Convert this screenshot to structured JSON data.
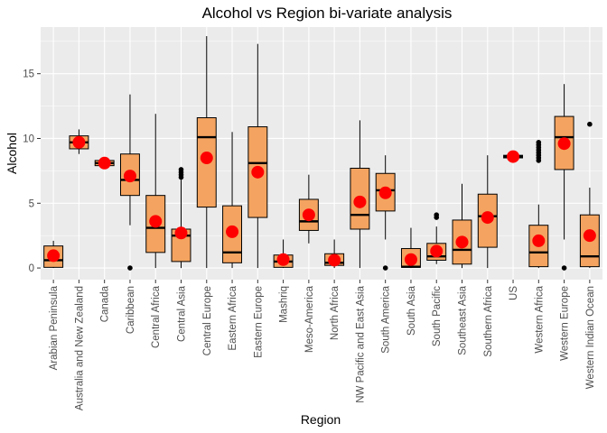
{
  "chart_data": {
    "type": "box",
    "title": "Alcohol vs Region bi-variate analysis",
    "xlabel": "Region",
    "ylabel": "Alcohol",
    "ylim": [
      -0.9,
      18.6
    ],
    "yticks": [
      0,
      5,
      10,
      15
    ],
    "grid": true,
    "background": "#ebebeb",
    "box_fill": "#f4a460",
    "mean_color": "#ff0000",
    "categories": [
      {
        "name": "Arabian Peninsula",
        "min": 0,
        "q1": 0.05,
        "median": 0.6,
        "q3": 1.7,
        "max": 2.1,
        "mean": 0.95,
        "outliers": []
      },
      {
        "name": "Australia and New Zealand",
        "min": 8.8,
        "q1": 9.2,
        "median": 9.7,
        "q3": 10.2,
        "max": 10.7,
        "mean": 9.7,
        "outliers": []
      },
      {
        "name": "Canada",
        "min": 7.9,
        "q1": 7.9,
        "median": 8.1,
        "q3": 8.3,
        "max": 8.3,
        "mean": 8.1,
        "outliers": []
      },
      {
        "name": "Caribbean",
        "min": 3.3,
        "q1": 5.6,
        "median": 6.8,
        "q3": 8.8,
        "max": 13.4,
        "mean": 7.1,
        "outliers": [
          0
        ]
      },
      {
        "name": "Central Africa",
        "min": 0,
        "q1": 1.2,
        "median": 3.1,
        "q3": 5.6,
        "max": 11.9,
        "mean": 3.6,
        "outliers": []
      },
      {
        "name": "Central Asia",
        "min": 0,
        "q1": 0.5,
        "median": 2.5,
        "q3": 3.0,
        "max": 6.8,
        "mean": 2.7,
        "outliers": [
          7.0,
          7.2,
          7.4,
          7.6
        ]
      },
      {
        "name": "Central Europe",
        "min": 0,
        "q1": 4.7,
        "median": 10.1,
        "q3": 11.6,
        "max": 17.9,
        "mean": 8.5,
        "outliers": []
      },
      {
        "name": "Eastern Africa",
        "min": 0,
        "q1": 0.4,
        "median": 1.2,
        "q3": 4.8,
        "max": 10.5,
        "mean": 2.8,
        "outliers": []
      },
      {
        "name": "Eastern Europe",
        "min": 0,
        "q1": 3.9,
        "median": 8.1,
        "q3": 10.9,
        "max": 17.3,
        "mean": 7.4,
        "outliers": []
      },
      {
        "name": "Mashriq",
        "min": 0,
        "q1": 0.05,
        "median": 0.5,
        "q3": 1.0,
        "max": 2.2,
        "mean": 0.65,
        "outliers": []
      },
      {
        "name": "Meso-America",
        "min": 1.9,
        "q1": 2.9,
        "median": 3.6,
        "q3": 5.3,
        "max": 7.2,
        "mean": 4.1,
        "outliers": []
      },
      {
        "name": "North Africa",
        "min": 0,
        "q1": 0.2,
        "median": 0.4,
        "q3": 1.1,
        "max": 2.2,
        "mean": 0.6,
        "outliers": []
      },
      {
        "name": "NW Pacific and East Asia",
        "min": 0,
        "q1": 3.0,
        "median": 4.1,
        "q3": 7.7,
        "max": 11.4,
        "mean": 5.1,
        "outliers": []
      },
      {
        "name": "South America",
        "min": 2.2,
        "q1": 4.4,
        "median": 6.0,
        "q3": 7.3,
        "max": 8.7,
        "mean": 5.8,
        "outliers": [
          0
        ]
      },
      {
        "name": "South Asia",
        "min": 0,
        "q1": 0.05,
        "median": 0.1,
        "q3": 1.5,
        "max": 3.1,
        "mean": 0.65,
        "outliers": []
      },
      {
        "name": "South Pacific",
        "min": 0.3,
        "q1": 0.6,
        "median": 0.9,
        "q3": 1.9,
        "max": 3.2,
        "mean": 1.3,
        "outliers": [
          3.9,
          4.1
        ]
      },
      {
        "name": "Southeast Asia",
        "min": 0,
        "q1": 0.3,
        "median": 1.4,
        "q3": 3.7,
        "max": 6.5,
        "mean": 2.0,
        "outliers": []
      },
      {
        "name": "Southern Africa",
        "min": 0,
        "q1": 1.6,
        "median": 4.0,
        "q3": 5.7,
        "max": 8.7,
        "mean": 3.9,
        "outliers": []
      },
      {
        "name": "US",
        "min": 8.5,
        "q1": 8.5,
        "median": 8.6,
        "q3": 8.7,
        "max": 8.7,
        "mean": 8.6,
        "outliers": []
      },
      {
        "name": "Western Africa",
        "min": 0,
        "q1": 0.1,
        "median": 1.2,
        "q3": 3.3,
        "max": 4.9,
        "mean": 2.1,
        "outliers": [
          8.3,
          8.5,
          8.7,
          8.9,
          9.1,
          9.3,
          9.5,
          9.7
        ]
      },
      {
        "name": "Western Europe",
        "min": 2.2,
        "q1": 7.6,
        "median": 10.1,
        "q3": 11.7,
        "max": 14.2,
        "mean": 9.6,
        "outliers": [
          0
        ]
      },
      {
        "name": "Western Indian Ocean",
        "min": 0,
        "q1": 0.1,
        "median": 0.9,
        "q3": 4.1,
        "max": 6.2,
        "mean": 2.5,
        "outliers": [
          11.1
        ]
      }
    ]
  }
}
